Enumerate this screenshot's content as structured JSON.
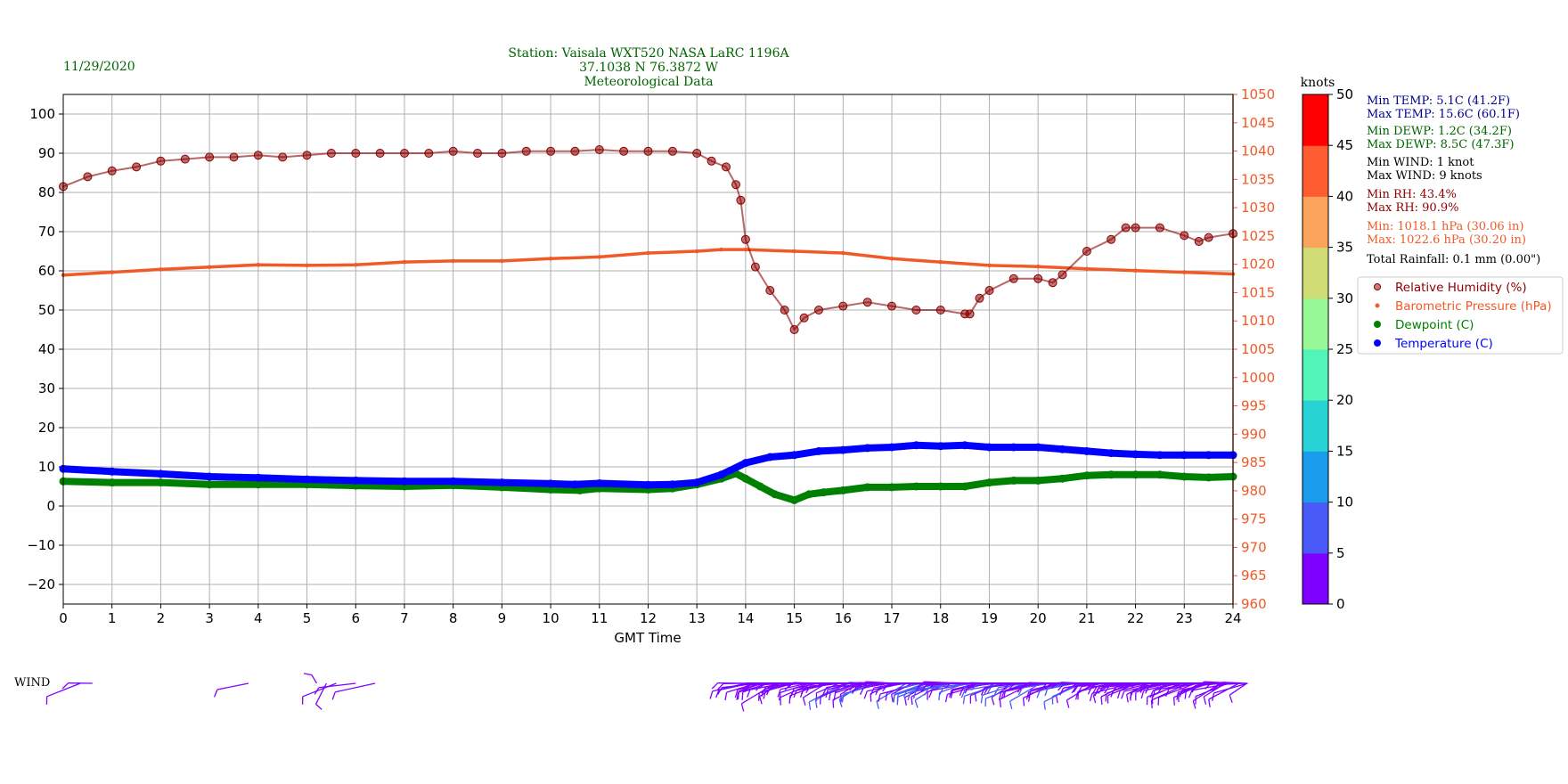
{
  "header": {
    "date": "11/29/2020",
    "station_line1": "Station:  Vaisala WXT520  NASA LaRC 1196A",
    "station_line2": "37.1038 N 76.3872 W",
    "station_line3": "Meteorological Data"
  },
  "stats": [
    {
      "text": "Min TEMP: 5.1C (41.2F)",
      "color": "#00008b"
    },
    {
      "text": "Max TEMP: 15.6C (60.1F)",
      "color": "#00008b"
    },
    {
      "text": "Min DEWP: 1.2C (34.2F)",
      "color": "#006400"
    },
    {
      "text": "Max DEWP: 8.5C (47.3F)",
      "color": "#006400"
    },
    {
      "text": "Min WIND: 1 knot",
      "color": "#000000"
    },
    {
      "text": "Max WIND: 9 knots",
      "color": "#000000"
    },
    {
      "text": "Min RH: 43.4%",
      "color": "#8b0000"
    },
    {
      "text": "Max RH: 90.9%",
      "color": "#8b0000"
    },
    {
      "text": "Min: 1018.1 hPa (30.06 in)",
      "color": "#f05a28"
    },
    {
      "text": "Max: 1022.6 hPa (30.20 in)",
      "color": "#f05a28"
    },
    {
      "text": "Total Rainfall: 0.1 mm (0.00\")",
      "color": "#000000"
    }
  ],
  "wind_label": "WIND",
  "colorbar": {
    "unit": "knots",
    "ticks": [
      0,
      5,
      10,
      15,
      20,
      25,
      30,
      35,
      40,
      45,
      50
    ],
    "colors": [
      "#7f00ff",
      "#4a5af8",
      "#1a9bec",
      "#28d3d6",
      "#52f5b9",
      "#97f895",
      "#cfdb74",
      "#fca45c",
      "#ff5c32",
      "#ff0000"
    ]
  },
  "chart_data": {
    "type": "line",
    "xlabel": "GMT Time",
    "xlim": [
      0,
      24
    ],
    "xticks": [
      0,
      1,
      2,
      3,
      4,
      5,
      6,
      7,
      8,
      9,
      10,
      11,
      12,
      13,
      14,
      15,
      16,
      17,
      18,
      19,
      20,
      21,
      22,
      23,
      24
    ],
    "y_left": {
      "lim": [
        -25,
        105
      ],
      "ticks": [
        -20,
        -10,
        0,
        10,
        20,
        30,
        40,
        50,
        60,
        70,
        80,
        90,
        100
      ]
    },
    "y_right": {
      "lim": [
        960,
        1050
      ],
      "ticks": [
        960,
        965,
        970,
        975,
        980,
        985,
        990,
        995,
        1000,
        1005,
        1010,
        1015,
        1020,
        1025,
        1030,
        1035,
        1040,
        1045,
        1050
      ],
      "color": "#f05a28"
    },
    "grid": true,
    "legend_position": "right",
    "series": [
      {
        "name": "Relative Humidity (%)",
        "axis": "left",
        "color": "#8b0000",
        "marker": "circle",
        "x": [
          0,
          0.5,
          1,
          1.5,
          2,
          2.5,
          3,
          3.5,
          4,
          4.5,
          5,
          5.5,
          6,
          6.5,
          7,
          7.5,
          8,
          8.5,
          9,
          9.5,
          10,
          10.5,
          11,
          11.5,
          12,
          12.5,
          13,
          13.3,
          13.6,
          13.8,
          13.9,
          14,
          14.2,
          14.5,
          14.8,
          15,
          15.2,
          15.5,
          16,
          16.5,
          17,
          17.5,
          18,
          18.5,
          18.6,
          18.8,
          19,
          19.5,
          20,
          20.3,
          20.5,
          21,
          21.5,
          21.8,
          22,
          22.5,
          23,
          23.3,
          23.5,
          24
        ],
        "values": [
          81.5,
          84,
          85.5,
          86.5,
          88,
          88.5,
          89,
          89,
          89.5,
          89,
          89.5,
          90,
          90,
          90,
          90,
          90,
          90.5,
          90,
          90,
          90.5,
          90.5,
          90.5,
          90.9,
          90.5,
          90.5,
          90.5,
          90,
          88,
          86.5,
          82,
          78,
          68,
          61,
          55,
          50,
          45,
          48,
          50,
          51,
          52,
          51,
          50,
          50,
          49,
          49,
          53,
          55,
          58,
          58,
          57,
          59,
          65,
          68,
          71,
          71,
          71,
          69,
          67.5,
          68.5,
          69.5
        ]
      },
      {
        "name": "Barometric Pressure (hPa)",
        "axis": "right",
        "color": "#f05a28",
        "marker": "dot",
        "x": [
          0,
          1,
          2,
          3,
          4,
          5,
          6,
          7,
          8,
          9,
          10,
          11,
          12,
          13,
          13.5,
          14,
          15,
          16,
          17,
          18,
          19,
          20,
          21,
          22,
          23,
          24
        ],
        "values": [
          1018.1,
          1018.6,
          1019.1,
          1019.5,
          1019.9,
          1019.8,
          1019.9,
          1020.4,
          1020.6,
          1020.6,
          1021.0,
          1021.3,
          1022.0,
          1022.3,
          1022.6,
          1022.6,
          1022.3,
          1022.0,
          1021.0,
          1020.4,
          1019.8,
          1019.6,
          1019.2,
          1018.9,
          1018.6,
          1018.3
        ]
      },
      {
        "name": "Dewpoint (C)",
        "axis": "left",
        "color": "#008000",
        "marker": "circle",
        "x": [
          0,
          1,
          2,
          3,
          4,
          5,
          6,
          7,
          8,
          9,
          10,
          10.6,
          11,
          12,
          12.5,
          13,
          13.5,
          13.8,
          14,
          14.3,
          14.6,
          15,
          15.3,
          15.6,
          16,
          16.5,
          17,
          17.5,
          18,
          18.5,
          19,
          19.5,
          20,
          20.5,
          21,
          21.5,
          22,
          22.5,
          23,
          23.5,
          24
        ],
        "values": [
          6.3,
          6,
          6,
          5.5,
          5.5,
          5.5,
          5.2,
          5,
          5.3,
          4.8,
          4.2,
          4,
          4.5,
          4.2,
          4.5,
          5.5,
          7,
          8.3,
          7,
          5,
          3,
          1.5,
          3,
          3.5,
          4,
          4.8,
          4.8,
          5,
          5,
          5,
          6,
          6.5,
          6.5,
          7,
          7.8,
          8,
          8,
          8,
          7.5,
          7.3,
          7.5
        ]
      },
      {
        "name": "Temperature (C)",
        "axis": "left",
        "color": "#0000ff",
        "marker": "circle",
        "x": [
          0,
          1,
          2,
          3,
          4,
          5,
          6,
          7,
          8,
          9,
          10,
          10.5,
          11,
          12,
          12.5,
          13,
          13.5,
          14,
          14.5,
          15,
          15.5,
          16,
          16.5,
          17,
          17.5,
          18,
          18.5,
          19,
          19.5,
          20,
          20.5,
          21,
          21.5,
          22,
          22.5,
          23,
          23.5,
          24
        ],
        "values": [
          9.5,
          8.8,
          8.2,
          7.5,
          7.2,
          6.8,
          6.5,
          6.3,
          6.3,
          6,
          5.7,
          5.5,
          5.8,
          5.4,
          5.5,
          6,
          8,
          11,
          12.5,
          13,
          14,
          14.3,
          14.8,
          15,
          15.5,
          15.3,
          15.5,
          15,
          15,
          15,
          14.5,
          14,
          13.5,
          13.2,
          13,
          13,
          13,
          13
        ]
      }
    ]
  }
}
